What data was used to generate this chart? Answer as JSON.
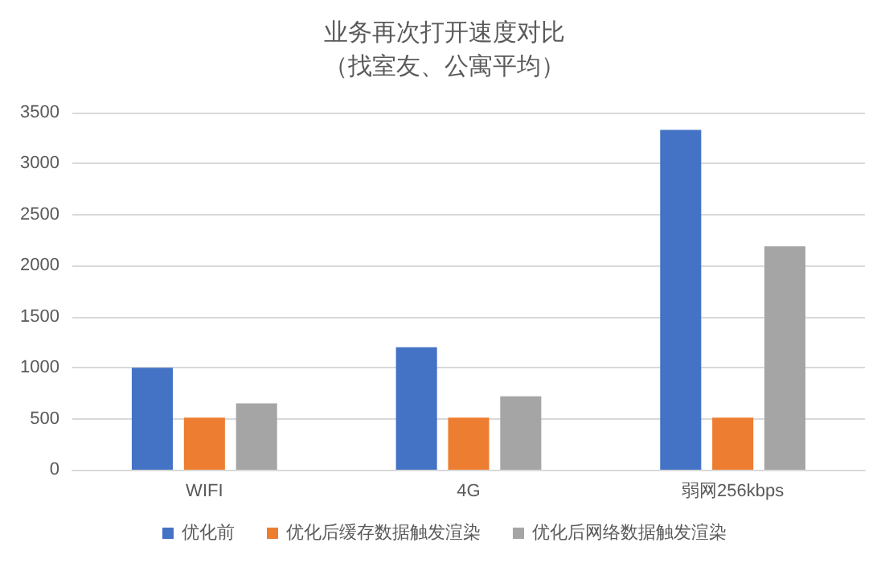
{
  "chart_data": {
    "type": "bar",
    "title": "业务再次打开速度对比",
    "subtitle": "（找室友、公寓平均）",
    "categories": [
      "WIFI",
      "4G",
      "弱网256kbps"
    ],
    "series": [
      {
        "name": "优化前",
        "color": "#4472c4",
        "values": [
          1000,
          1200,
          3330
        ]
      },
      {
        "name": "优化后缓存数据触发渲染",
        "color": "#ed7d31",
        "values": [
          510,
          510,
          510
        ]
      },
      {
        "name": "优化后网络数据触发渲染",
        "color": "#a5a5a5",
        "values": [
          650,
          720,
          2190
        ]
      }
    ],
    "ylim": [
      0,
      3500
    ],
    "yticks": [
      0,
      500,
      1000,
      1500,
      2000,
      2500,
      3000,
      3500
    ],
    "grid": "y",
    "legend": "bottom"
  }
}
